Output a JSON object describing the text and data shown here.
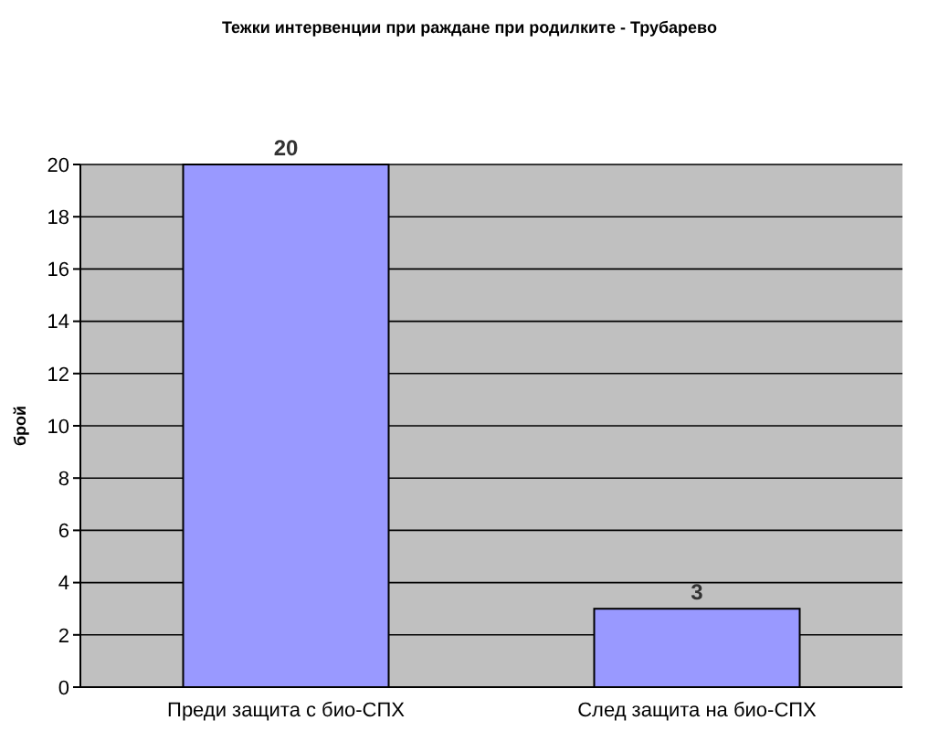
{
  "chart_data": {
    "type": "bar",
    "title": "Тежки интервенции при раждане при родилките - Трубарево",
    "ylabel": "брой",
    "categories": [
      "Преди защита с био-СПХ",
      "След защита на био-СПХ"
    ],
    "values": [
      20,
      3
    ],
    "color": "#9999ff",
    "ylim": [
      0,
      20
    ],
    "yticks": [
      0,
      2,
      4,
      6,
      8,
      10,
      12,
      14,
      16,
      18,
      20
    ],
    "grid": "y",
    "data_labels": true
  }
}
